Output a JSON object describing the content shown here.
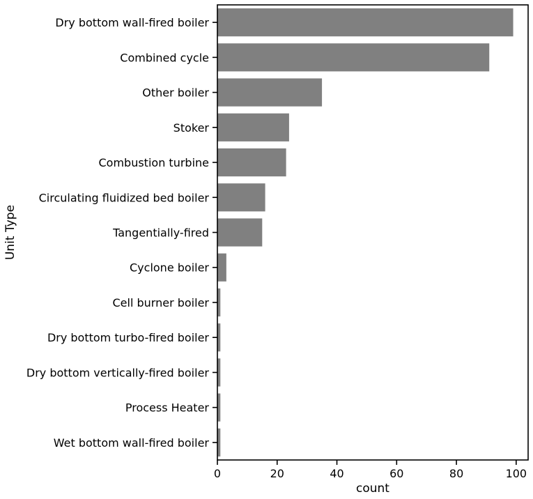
{
  "chart_data": {
    "type": "bar",
    "orientation": "horizontal",
    "categories": [
      "Dry bottom wall-fired boiler",
      "Combined cycle",
      "Other boiler",
      "Stoker",
      "Combustion turbine",
      "Circulating fluidized bed boiler",
      "Tangentially-fired",
      "Cyclone boiler",
      "Cell burner boiler",
      "Dry bottom turbo-fired boiler",
      "Dry bottom vertically-fired boiler",
      "Process Heater",
      "Wet bottom wall-fired boiler"
    ],
    "values": [
      99,
      91,
      35,
      24,
      23,
      16,
      15,
      3,
      1,
      1,
      1,
      1,
      1
    ],
    "xlabel": "count",
    "ylabel": "Unit Type",
    "xlim": [
      0,
      104
    ],
    "xticks": [
      0,
      20,
      40,
      60,
      80,
      100
    ],
    "grid": false,
    "bar_color": "#808080"
  }
}
